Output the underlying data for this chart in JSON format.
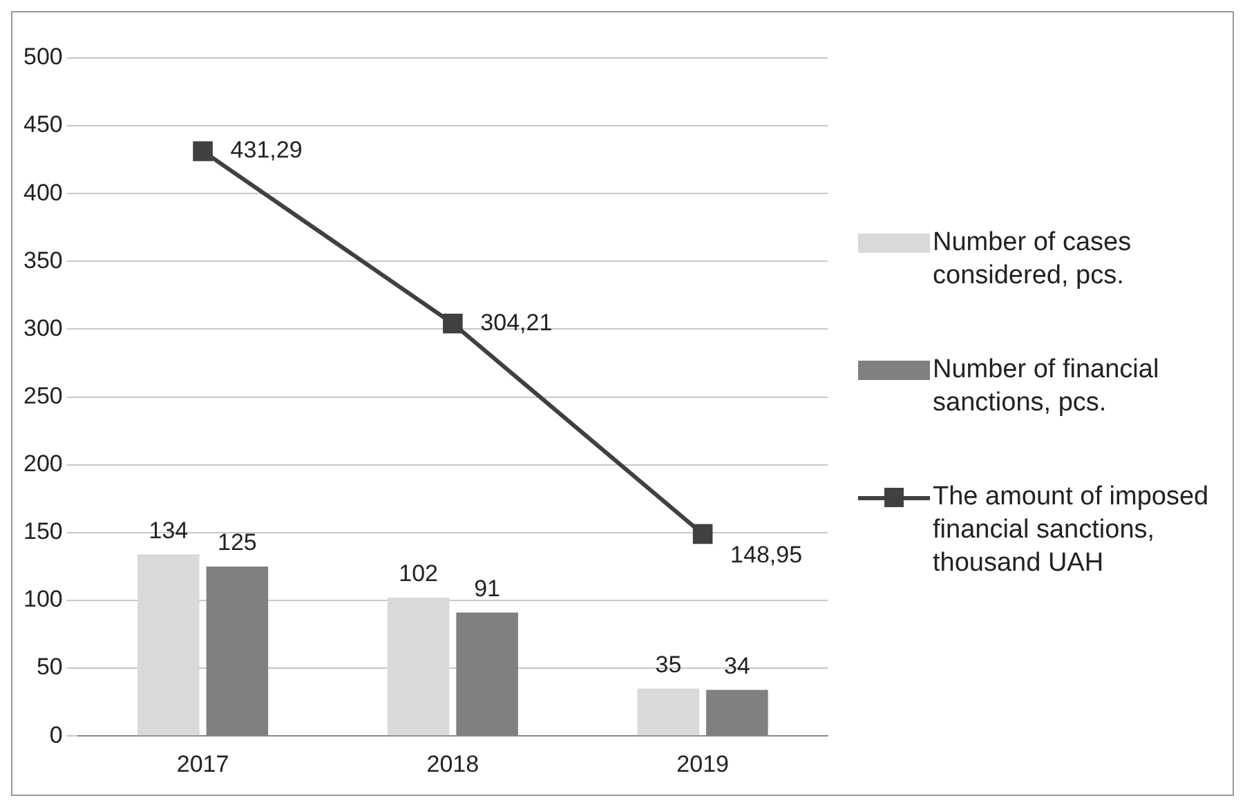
{
  "chart_data": {
    "type": "bar",
    "categories": [
      "2017",
      "2018",
      "2019"
    ],
    "series": [
      {
        "name": "Number of cases considered, pcs.",
        "color": "#d9d9d9",
        "values": [
          134,
          102,
          35
        ],
        "value_labels": [
          "134",
          "102",
          "35"
        ]
      },
      {
        "name": "Number of financial sanctions, pcs.",
        "color": "#808080",
        "values": [
          125,
          91,
          34
        ],
        "value_labels": [
          "125",
          "91",
          "34"
        ]
      },
      {
        "name": "The amount of imposed financial sanctions, thousand UAH",
        "type": "line",
        "color": "#404040",
        "marker": "square",
        "line_style": "solid",
        "values": [
          431.29,
          304.21,
          148.95
        ],
        "value_labels": [
          "431,29",
          "304,21",
          "148,95"
        ]
      }
    ],
    "ylim": [
      0,
      500
    ],
    "yticks": [
      0,
      50,
      100,
      150,
      200,
      250,
      300,
      350,
      400,
      450,
      500
    ],
    "grid": "y",
    "legend": "right"
  }
}
